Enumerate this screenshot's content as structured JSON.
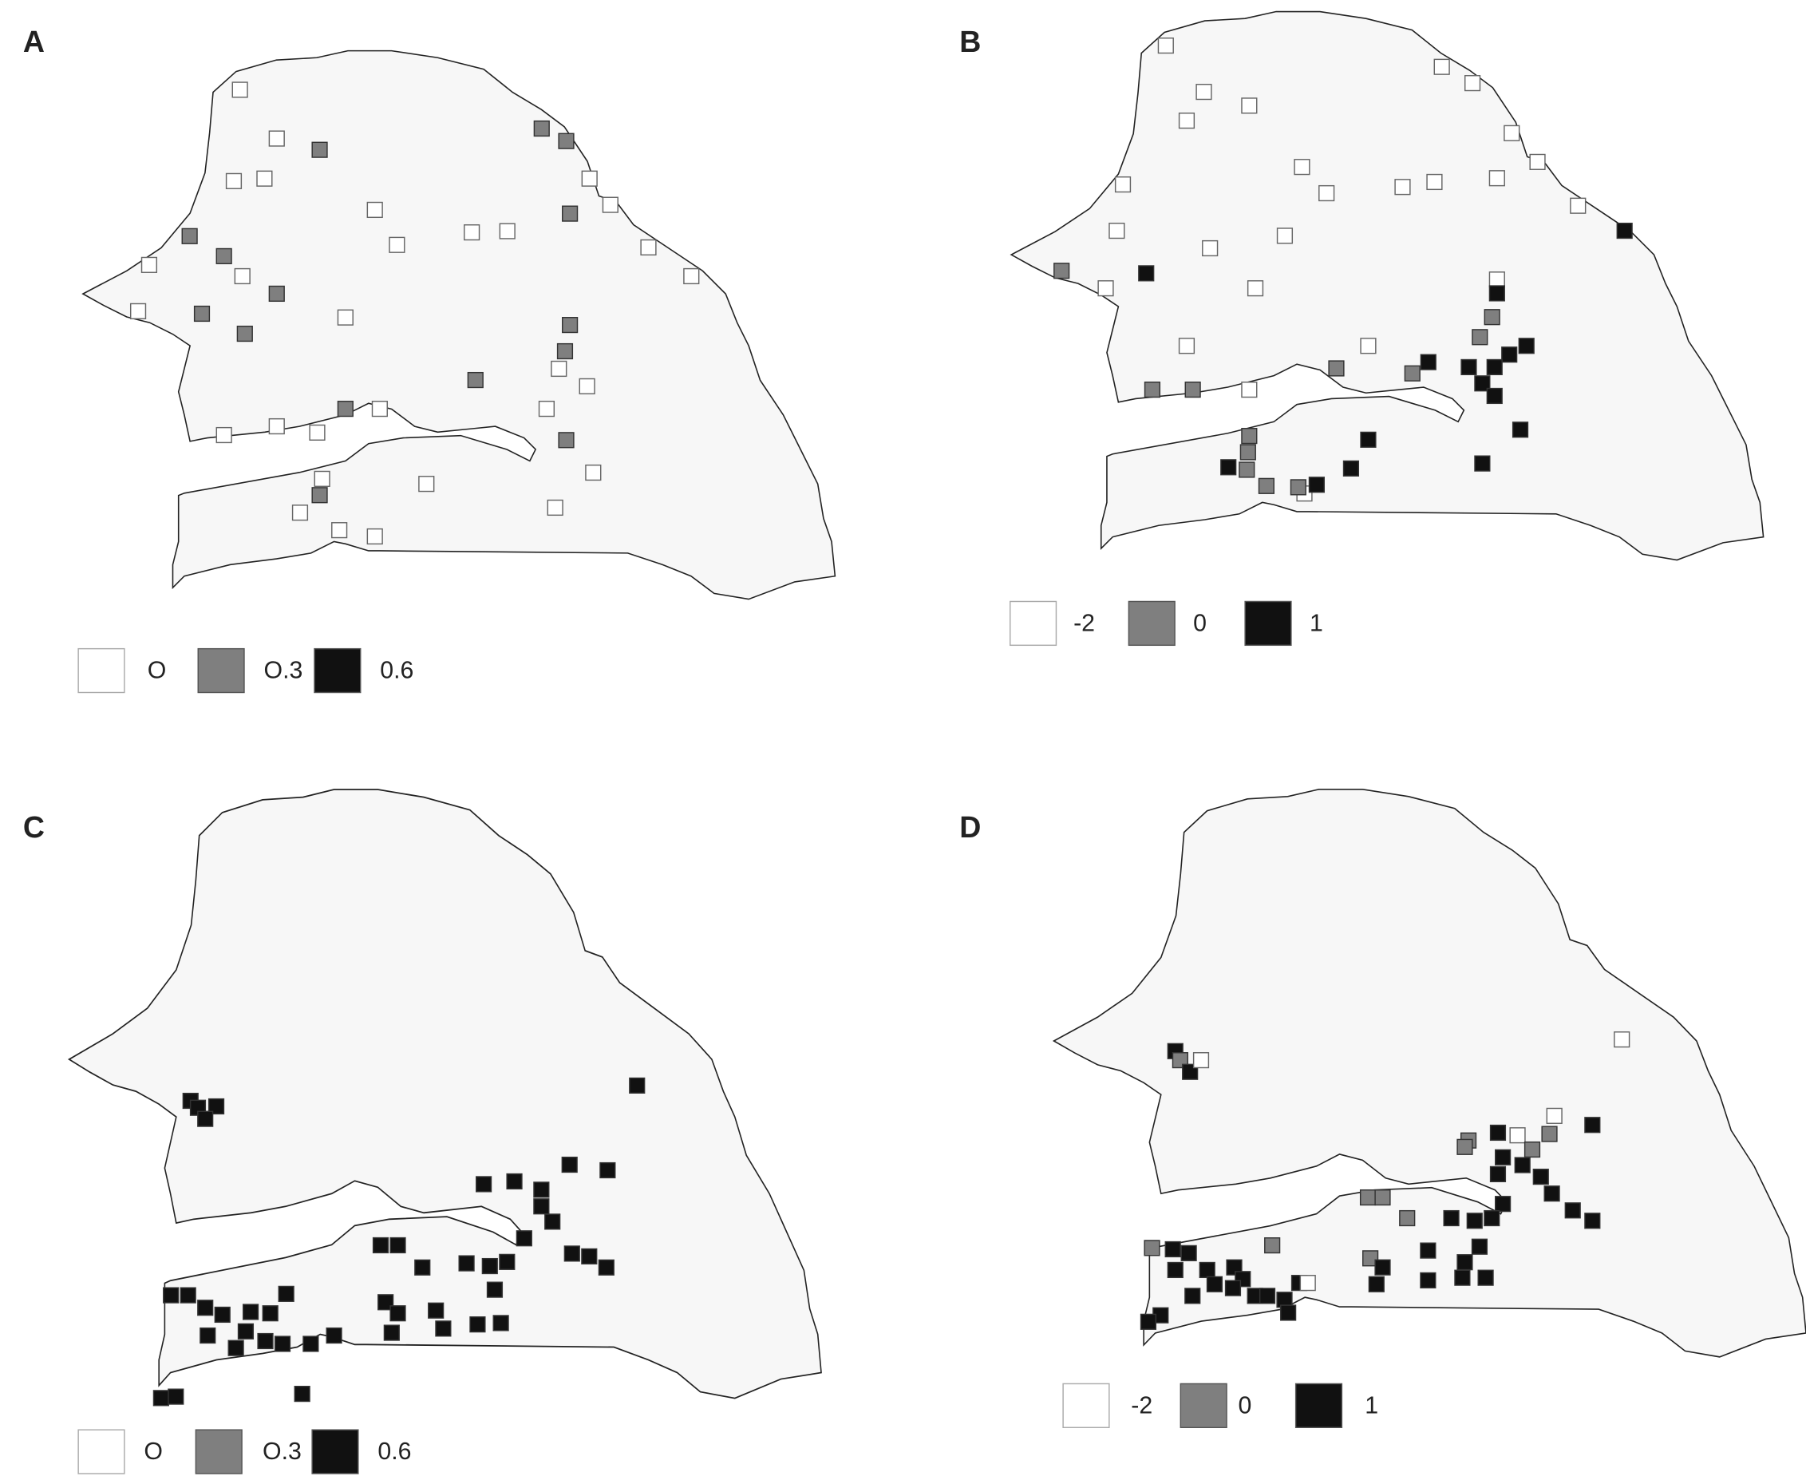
{
  "chart_data": [
    {
      "type": "map",
      "panel_label": "A",
      "legend": [
        {
          "value": 0,
          "label": "O",
          "color": "#ffffff"
        },
        {
          "value": 0.3,
          "label": "O.3",
          "color": "#7f7f7f"
        },
        {
          "value": 0.6,
          "label": "0.6",
          "color": "#111111"
        }
      ],
      "points": {
        "lon": [
          -16.22,
          -15.92,
          -15.57,
          -13.76,
          -13.56,
          -16.27,
          -16.02,
          -15.12,
          -13.53,
          -13.37,
          -13.2,
          -16.63,
          -16.35,
          -16.2,
          -15.92,
          -16.53,
          -16.18,
          -15.36,
          -14.94,
          -14.33,
          -14.04,
          -12.89,
          -13.53,
          -13.57,
          -13.62,
          -13.39,
          -13.72,
          -13.56,
          -14.3,
          -15.36,
          -15.08,
          -15.92,
          -15.59,
          -16.35,
          -13.34,
          -13.65,
          -14.7,
          -15.57,
          -15.55,
          -15.73,
          -15.12,
          -15.41,
          -12.54,
          -17.05,
          -16.96
        ],
        "lat": [
          16.37,
          15.98,
          15.89,
          16.06,
          15.96,
          15.64,
          15.66,
          15.41,
          15.38,
          15.66,
          15.45,
          15.2,
          15.04,
          14.88,
          14.74,
          14.58,
          14.42,
          14.55,
          15.13,
          15.23,
          15.24,
          15.11,
          14.49,
          14.28,
          14.14,
          14.0,
          13.82,
          13.57,
          14.05,
          13.82,
          13.82,
          13.68,
          13.63,
          13.61,
          13.31,
          13.03,
          13.22,
          13.13,
          13.26,
          12.99,
          12.8,
          12.85,
          14.88,
          14.6,
          14.97
        ],
        "values": [
          0,
          0,
          0.3,
          0.3,
          0.3,
          0,
          0,
          0,
          0.3,
          0,
          0,
          0.3,
          0.3,
          0,
          0.3,
          0.3,
          0.3,
          0,
          0,
          0,
          0,
          0,
          0.3,
          0.3,
          0,
          0,
          0,
          0.3,
          0.3,
          0.3,
          0,
          0,
          0,
          0,
          0,
          0,
          0,
          0.3,
          0,
          0,
          0,
          0,
          0,
          0,
          0
        ]
      }
    },
    {
      "type": "map",
      "panel_label": "B",
      "legend": [
        {
          "value": -2,
          "label": "-2",
          "color": "#ffffff"
        },
        {
          "value": 0,
          "label": "0",
          "color": "#7f7f7f"
        },
        {
          "value": 1,
          "label": "1",
          "color": "#111111"
        }
      ],
      "points": {
        "lon": [
          -16.24,
          -15.93,
          -15.56,
          -16.07,
          -13.99,
          -13.74,
          -13.42,
          -13.54,
          -13.21,
          -12.88,
          -12.5,
          -15.13,
          -14.31,
          -14.05,
          -14.93,
          -15.27,
          -16.59,
          -16.64,
          -16.4,
          -17.09,
          -16.73,
          -15.88,
          -15.51,
          -16.07,
          -16.35,
          -16.02,
          -15.56,
          -14.85,
          -14.59,
          -14.23,
          -14.1,
          -13.54,
          -13.54,
          -13.58,
          -13.68,
          -13.3,
          -13.44,
          -13.77,
          -13.56,
          -13.66,
          -13.56,
          -13.35,
          -13.66,
          -14.59,
          -14.73,
          -15.56,
          -15.57,
          -15.58,
          -15.73,
          -15.42,
          -15.11,
          -15.01,
          -15.16
        ],
        "lat": [
          16.41,
          16.04,
          15.93,
          15.81,
          16.24,
          16.11,
          15.71,
          15.35,
          15.48,
          15.13,
          14.93,
          15.44,
          15.28,
          15.32,
          15.23,
          14.89,
          15.3,
          14.93,
          14.59,
          14.61,
          14.47,
          14.79,
          14.47,
          14.01,
          13.66,
          13.66,
          13.66,
          13.83,
          14.01,
          13.79,
          13.88,
          14.54,
          14.43,
          14.24,
          14.08,
          14.01,
          13.94,
          13.84,
          13.84,
          13.71,
          13.61,
          13.34,
          13.07,
          13.26,
          13.03,
          13.29,
          13.16,
          13.02,
          13.04,
          12.89,
          12.83,
          12.9,
          12.88
        ],
        "values": [
          -2,
          -2,
          -2,
          -2,
          -2,
          -2,
          -2,
          -2,
          -2,
          -2,
          1,
          -2,
          -2,
          -2,
          -2,
          -2,
          -2,
          -2,
          1,
          0,
          -2,
          -2,
          -2,
          -2,
          0,
          0,
          -2,
          0,
          -2,
          0,
          1,
          -2,
          1,
          0,
          0,
          1,
          1,
          1,
          1,
          1,
          1,
          1,
          1,
          1,
          1,
          0,
          0,
          0,
          1,
          0,
          -2,
          1,
          0
        ]
      }
    },
    {
      "type": "map",
      "panel_label": "C",
      "legend": [
        {
          "value": 0,
          "label": "O",
          "color": "#ffffff"
        },
        {
          "value": 0.3,
          "label": "O.3",
          "color": "#7f7f7f"
        },
        {
          "value": 0.6,
          "label": "0.6",
          "color": "#111111"
        }
      ],
      "points": {
        "lon": [
          -16.51,
          -16.45,
          -16.3,
          -16.39,
          -12.87,
          -14.12,
          -13.87,
          -13.42,
          -13.11,
          -13.65,
          -13.65,
          -13.56,
          -13.79,
          -13.4,
          -13.26,
          -13.12,
          -13.93,
          -14.07,
          -14.03,
          -14.26,
          -14.62,
          -14.96,
          -14.82,
          -14.92,
          -14.82,
          -14.51,
          -14.17,
          -13.98,
          -14.45,
          -14.87,
          -16.67,
          -16.53,
          -16.39,
          -16.25,
          -16.02,
          -15.86,
          -15.73,
          -16.06,
          -15.9,
          -16.14,
          -15.76,
          -15.53,
          -15.6,
          -15.34,
          -16.75,
          -16.63,
          -16.37
        ],
        "lat": [
          14.44,
          14.39,
          14.4,
          14.31,
          14.55,
          13.84,
          13.86,
          13.98,
          13.94,
          13.8,
          13.68,
          13.57,
          13.45,
          13.34,
          13.32,
          13.24,
          13.28,
          13.25,
          13.08,
          13.27,
          13.24,
          13.4,
          13.4,
          12.99,
          12.91,
          12.93,
          12.83,
          12.84,
          12.8,
          12.77,
          13.04,
          13.04,
          12.95,
          12.9,
          12.92,
          12.91,
          13.05,
          12.78,
          12.71,
          12.66,
          12.69,
          12.69,
          12.33,
          12.75,
          12.3,
          12.31,
          12.75
        ],
        "values": [
          0.6,
          0.6,
          0.6,
          0.6,
          0.6,
          0.6,
          0.6,
          0.6,
          0.6,
          0.6,
          0.6,
          0.6,
          0.6,
          0.6,
          0.6,
          0.6,
          0.6,
          0.6,
          0.6,
          0.6,
          0.6,
          0.6,
          0.6,
          0.6,
          0.6,
          0.6,
          0.6,
          0.6,
          0.6,
          0.6,
          0.6,
          0.6,
          0.6,
          0.6,
          0.6,
          0.6,
          0.6,
          0.6,
          0.6,
          0.6,
          0.6,
          0.6,
          0.6,
          0.6,
          0.6,
          0.6,
          0.6
        ]
      }
    },
    {
      "type": "map",
      "panel_label": "D",
      "legend": [
        {
          "value": -2,
          "label": "-2",
          "color": "#ffffff"
        },
        {
          "value": 0,
          "label": "0",
          "color": "#7f7f7f"
        },
        {
          "value": 1,
          "label": "1",
          "color": "#111111"
        }
      ],
      "points": {
        "lon": [
          -16.51,
          -16.47,
          -16.39,
          -16.3,
          -12.87,
          -13.11,
          -13.42,
          -13.46,
          -13.72,
          -13.88,
          -14.12,
          -14.15,
          -13.6,
          -13.84,
          -13.68,
          -13.53,
          -13.88,
          -13.44,
          -13.27,
          -13.11,
          -13.84,
          -13.93,
          -14.07,
          -14.26,
          -14.03,
          -14.15,
          -14.45,
          -14.62,
          -14.94,
          -14.82,
          -14.92,
          -14.82,
          -14.45,
          -13.98,
          -14.17,
          -14.87,
          -15.72,
          -16.7,
          -16.53,
          -16.4,
          -16.51,
          -16.25,
          -16.19,
          -16.03,
          -15.96,
          -16.04,
          -15.86,
          -15.76,
          -15.62,
          -15.5,
          -15.43,
          -15.59,
          -16.37,
          -16.63,
          -16.73
        ],
        "lat": [
          14.66,
          14.59,
          14.5,
          14.59,
          14.75,
          14.09,
          14.16,
          14.02,
          14.01,
          14.03,
          13.97,
          13.92,
          13.9,
          13.84,
          13.78,
          13.69,
          13.71,
          13.56,
          13.43,
          13.35,
          13.48,
          13.37,
          13.35,
          13.37,
          13.15,
          13.03,
          13.12,
          13.37,
          13.53,
          13.53,
          13.06,
          12.99,
          12.89,
          12.91,
          12.91,
          12.86,
          13.16,
          13.14,
          13.13,
          13.1,
          12.97,
          12.97,
          12.86,
          12.99,
          12.9,
          12.83,
          12.77,
          12.77,
          12.74,
          12.87,
          12.87,
          12.64,
          12.77,
          12.62,
          12.57
        ],
        "values": [
          1,
          0,
          1,
          -2,
          -2,
          1,
          -2,
          0,
          -2,
          1,
          0,
          0,
          0,
          1,
          1,
          1,
          1,
          1,
          1,
          1,
          1,
          1,
          1,
          1,
          1,
          1,
          1,
          0,
          0,
          0,
          0,
          1,
          1,
          1,
          1,
          1,
          0,
          0,
          1,
          1,
          1,
          1,
          1,
          1,
          1,
          1,
          1,
          1,
          1,
          1,
          -2,
          1,
          1,
          1,
          1
        ]
      }
    }
  ]
}
